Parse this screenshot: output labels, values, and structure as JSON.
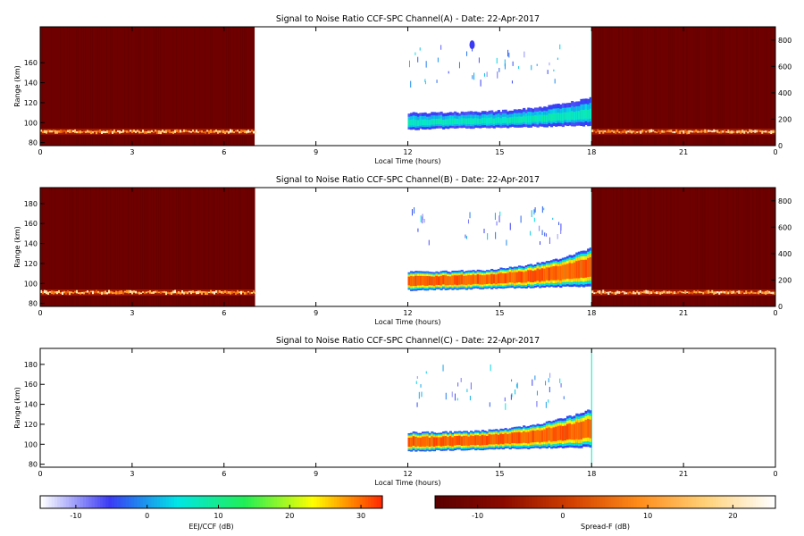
{
  "chart_data": [
    {
      "type": "heatmap",
      "title": "Signal to Noise Ratio CCF-SPC Channel(A) - Date: 22-Apr-2017",
      "xlabel": "Local Time (hours)",
      "ylabel": "Range (km)",
      "xlim": [
        0,
        24
      ],
      "ylim": [
        77,
        196
      ],
      "x_ticks": [
        "0",
        "3",
        "6",
        "9",
        "12",
        "15",
        "18",
        "21",
        "0"
      ],
      "y_ticks": [
        "80",
        "100",
        "120",
        "140",
        "160"
      ],
      "y2_ticks": [
        "0",
        "200",
        "400",
        "600",
        "800"
      ],
      "segments": [
        {
          "colormap": "spread-f",
          "x_start": 0,
          "x_end": 7,
          "layer_range_km": [
            88,
            94
          ],
          "background_db": -12
        },
        {
          "colormap": "eej-ccf",
          "x_start": 12,
          "x_end": 18,
          "echo_bottom_km": [
            93,
            97
          ],
          "echo_top_km": [
            110,
            125
          ],
          "peak_db": 3
        },
        {
          "colormap": "spread-f",
          "x_start": 18,
          "x_end": 24,
          "layer_range_km": [
            88,
            94
          ],
          "background_db": -12
        }
      ]
    },
    {
      "type": "heatmap",
      "title": "Signal to Noise Ratio CCF-SPC Channel(B) - Date: 22-Apr-2017",
      "xlabel": "Local Time (hours)",
      "ylabel": "Range (km)",
      "xlim": [
        0,
        24
      ],
      "ylim": [
        77,
        196
      ],
      "x_ticks": [
        "0",
        "3",
        "6",
        "9",
        "12",
        "15",
        "18",
        "21",
        "0"
      ],
      "y_ticks": [
        "80",
        "100",
        "120",
        "140",
        "160",
        "180"
      ],
      "y2_ticks": [
        "0",
        "200",
        "400",
        "600",
        "800"
      ],
      "segments": [
        {
          "colormap": "spread-f",
          "x_start": 0,
          "x_end": 7,
          "layer_range_km": [
            88,
            94
          ],
          "background_db": -12
        },
        {
          "colormap": "eej-ccf",
          "x_start": 12,
          "x_end": 18,
          "echo_bottom_km": [
            93,
            97
          ],
          "echo_top_km": [
            112,
            135
          ],
          "peak_db": 30
        },
        {
          "colormap": "spread-f",
          "x_start": 18,
          "x_end": 24,
          "layer_range_km": [
            88,
            94
          ],
          "background_db": -12
        }
      ]
    },
    {
      "type": "heatmap",
      "title": "Signal to Noise Ratio CCF-SPC Channel(C) - Date: 22-Apr-2017",
      "xlabel": "Local Time (hours)",
      "ylabel": "Range (km)",
      "xlim": [
        0,
        24
      ],
      "ylim": [
        77,
        196
      ],
      "x_ticks": [
        "0",
        "3",
        "6",
        "9",
        "12",
        "15",
        "18",
        "21",
        "0"
      ],
      "y_ticks": [
        "80",
        "100",
        "120",
        "140",
        "160",
        "180"
      ],
      "y2_ticks": [],
      "segments": [
        {
          "colormap": "eej-ccf",
          "x_start": 12,
          "x_end": 18,
          "echo_bottom_km": [
            93,
            97
          ],
          "echo_top_km": [
            112,
            135
          ],
          "peak_db": 30
        }
      ]
    }
  ],
  "colorbars": [
    {
      "colormap": "eej-ccf",
      "label": "EEJ/CCF (dB)",
      "range_db": [
        -15,
        33
      ],
      "ticks": [
        "-10",
        "0",
        "10",
        "20",
        "30"
      ],
      "tick_values": [
        -10,
        0,
        10,
        20,
        30
      ]
    },
    {
      "colormap": "spread-f",
      "label": "Spread-F (dB)",
      "range_db": [
        -15,
        25
      ],
      "ticks": [
        "-10",
        "0",
        "10",
        "20"
      ],
      "tick_values": [
        -10,
        0,
        10,
        20
      ]
    }
  ],
  "colors": {
    "eej-ccf": [
      "#ffffff",
      "#3a3af5",
      "#00e6e6",
      "#22ee55",
      "#ffff00",
      "#ff2a00"
    ],
    "spread-f": [
      "#5a0000",
      "#8b0a00",
      "#d24000",
      "#ff8c1a",
      "#ffd27a",
      "#ffffff"
    ]
  }
}
